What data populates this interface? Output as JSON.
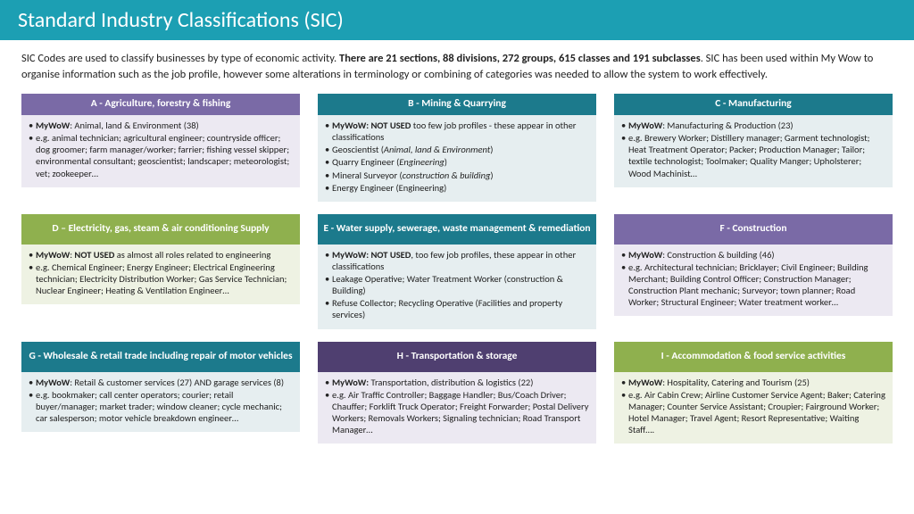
{
  "header": {
    "title": "Standard Industry Classifications (SIC)"
  },
  "intro": {
    "part1": "SIC Codes are used to classify businesses by type of economic activity. ",
    "bold": "There are 21 sections, 88 divisions, 272 groups, 615 classes and 191 subclasses",
    "part2": ". SIC has been used within My Wow to organise information such as the job profile, however some alterations in terminology or combining of categories was needed to allow the system to work effectively."
  },
  "cards": [
    {
      "title": "A - Agriculture, forestry & fishing",
      "headerClass": "purple-h",
      "bodyClass": "purple-b",
      "lines": [
        "<b>MyWoW</b>: Animal, land & Environment (38)",
        "e.g. animal technician; agricultural engineer; countryside officer; dog groomer; farm manager/worker; farrier; fishing vessel skipper; environmental consultant; geoscientist; landscaper; meteorologist; vet; zookeeper…"
      ]
    },
    {
      "title": "B - Mining & Quarrying",
      "headerClass": "teal-h",
      "bodyClass": "teal-b",
      "lines": [
        "<b>MyWoW: NOT USED</b> too few job profiles - these appear in other classifications",
        "Geoscientist (<em>Animal, land & Environment</em>)",
        "Quarry Engineer (<em>Engineering</em>)",
        "Mineral Surveyor (<em>construction & building</em>)",
        "Energy Engineer (Engineering)"
      ]
    },
    {
      "title": "C - Manufacturing",
      "headerClass": "teal-h",
      "bodyClass": "teal-b",
      "lines": [
        "<b>MyWoW</b>: Manufacturing & Production (23)",
        "e.g. Brewery Worker; Distillery manager; Garment technologist; Heat Treatment Operator; Packer; Production Manager; Tailor; textile technologist; Toolmaker; Quality Manger; Upholsterer; Wood Machinist…"
      ]
    },
    {
      "title": "D – Electricity, gas, steam & air conditioning Supply",
      "headerClass": "green-h",
      "bodyClass": "green-b",
      "tall": true,
      "lines": [
        "<b>MyWoW</b>: <b>NOT USED</b> as almost all roles related to engineering",
        "e.g. Chemical Engineer; Energy Engineer; Electrical Engineering technician; Electricity Distribution Worker; Gas Service Technician; Nuclear Engineer; Heating & Ventilation Engineer…"
      ]
    },
    {
      "title": "E - Water supply, sewerage, waste management & remediation",
      "headerClass": "teal-h",
      "bodyClass": "teal-b",
      "tall": true,
      "lines": [
        "<b>MyWoW: NOT USED</b>, too few job profiles, these appear in other classifications",
        "Leakage Operative; Water Treatment Worker (construction & Building)",
        "Refuse Collector; Recycling Operative (Facilities and property services)"
      ]
    },
    {
      "title": "F - Construction",
      "headerClass": "purple-h",
      "bodyClass": "purple-b",
      "tall": true,
      "lines": [
        "<b>MyWoW</b>: Construction & building (46)",
        "e.g. Architectural technician; Bricklayer; Civil Engineer; Building Merchant; Building Control Officer; Construction Manager; Construction Plant mechanic; Surveyor; town planner; Road Worker; Structural Engineer; Water treatment worker…"
      ]
    },
    {
      "title": "G - Wholesale & retail trade including repair of motor vehicles",
      "headerClass": "teal-h",
      "bodyClass": "teal-b",
      "tall": true,
      "lines": [
        "<b>MyWoW</b>: Retail & customer services (27) AND garage services (8)",
        "e.g. bookmaker; call center operators; courier; retail buyer/manager; market trader; window cleaner; cycle mechanic; car salesperson; motor vehicle breakdown engineer…"
      ]
    },
    {
      "title": "H - Transportation & storage",
      "headerClass": "darkpurple-h",
      "bodyClass": "purple-b",
      "tall": true,
      "lines": [
        "<b>MyWoW:</b> Transportation, distribution & logistics (22)",
        "e.g. Air Traffic Controller; Baggage Handler; Bus/Coach Driver; Chauffer; Forklift Truck Operator; Freight Forwarder; Postal Delivery Workers; Removals Workers; Signaling technician; Road Transport Manager…"
      ]
    },
    {
      "title": "I - Accommodation & food service activities",
      "headerClass": "green-h",
      "bodyClass": "green-b",
      "tall": true,
      "lines": [
        "<b>MyWoW</b>: Hospitality, Catering and Tourism (25)",
        "e.g. Air Cabin Crew; Airline Customer Service Agent; Baker; Catering Manager; Counter Service Assistant; Croupier; Fairground Worker; Hotel Manager; Travel Agent; Resort Representative; Waiting Staff…."
      ]
    }
  ],
  "colors": {
    "headerBg": "#1c9fb3",
    "teal": "#1c7a8c",
    "purple": "#7a6aa6",
    "green": "#8fb04e",
    "darkpurple": "#4f3f70"
  }
}
